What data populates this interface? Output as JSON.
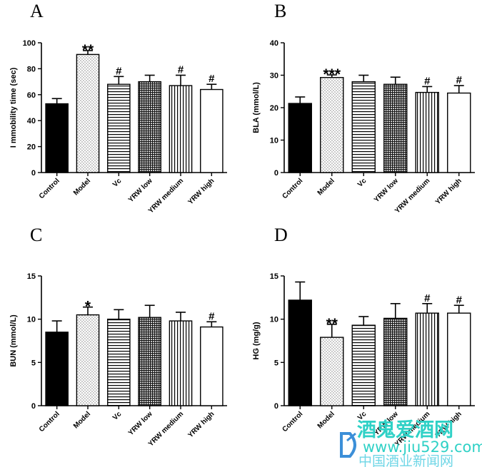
{
  "chart_data": [
    {
      "type": "bar",
      "panel_label": "A",
      "ylabel": "I mmobility time (sec)",
      "categories": [
        "Control",
        "Model",
        "Vc",
        "YRW low",
        "YRW medium",
        "YRW high"
      ],
      "values": [
        53,
        91,
        68,
        70,
        67,
        64
      ],
      "errors": [
        4,
        3,
        6,
        5,
        8,
        4
      ],
      "significance": [
        "",
        "**",
        "#",
        "",
        "#",
        "#"
      ],
      "ylim": [
        0,
        100
      ],
      "yticks": [
        "0",
        "20",
        "40",
        "60",
        "80",
        "100"
      ],
      "patterns": [
        "solid",
        "dots",
        "hlines",
        "cross",
        "vlines",
        "empty"
      ]
    },
    {
      "type": "bar",
      "panel_label": "B",
      "ylabel": "BLA (mmol/L)",
      "categories": [
        "Control",
        "Model",
        "Vc",
        "YRW low",
        "YRW medium",
        "YRW high"
      ],
      "values": [
        21.3,
        29.3,
        28.0,
        27.2,
        24.7,
        24.5
      ],
      "errors": [
        2.0,
        0.8,
        2.0,
        2.2,
        1.8,
        2.3
      ],
      "significance": [
        "",
        "***",
        "",
        "",
        "#",
        "#"
      ],
      "ylim": [
        0,
        40
      ],
      "yticks": [
        "0",
        "10",
        "20",
        "30",
        "40"
      ],
      "patterns": [
        "solid",
        "dots",
        "hlines",
        "cross",
        "vlines",
        "empty"
      ]
    },
    {
      "type": "bar",
      "panel_label": "C",
      "ylabel": "BUN (mmol/L)",
      "categories": [
        "Control",
        "Model",
        "Vc",
        "YRW low",
        "YRW medium",
        "YRW high"
      ],
      "values": [
        8.5,
        10.5,
        10.0,
        10.2,
        9.8,
        9.1
      ],
      "errors": [
        1.3,
        0.9,
        1.1,
        1.4,
        1.0,
        0.6
      ],
      "significance": [
        "",
        "*",
        "",
        "",
        "",
        "#"
      ],
      "ylim": [
        0,
        15
      ],
      "yticks": [
        "0",
        "5",
        "10",
        "15"
      ],
      "patterns": [
        "solid",
        "dots",
        "hlines",
        "cross",
        "vlines",
        "empty"
      ]
    },
    {
      "type": "bar",
      "panel_label": "D",
      "ylabel": "HG (mg/g)",
      "categories": [
        "Control",
        "Model",
        "Vc",
        "YRW low",
        "YRW medium",
        "YRW high"
      ],
      "values": [
        12.2,
        7.9,
        9.3,
        10.1,
        10.7,
        10.7
      ],
      "errors": [
        2.1,
        1.5,
        1.0,
        1.7,
        1.1,
        0.9
      ],
      "significance": [
        "",
        "**",
        "",
        "",
        "#",
        "#"
      ],
      "ylim": [
        0,
        15
      ],
      "yticks": [
        "0",
        "5",
        "10",
        "15"
      ],
      "patterns": [
        "solid",
        "dots",
        "hlines",
        "cross",
        "vlines",
        "empty"
      ]
    }
  ],
  "watermark": {
    "title": "酒鬼爱酒网",
    "url": "www.jiu529.com",
    "subtitle": "中国酒业新闻网",
    "color": "#2fd1c6"
  }
}
